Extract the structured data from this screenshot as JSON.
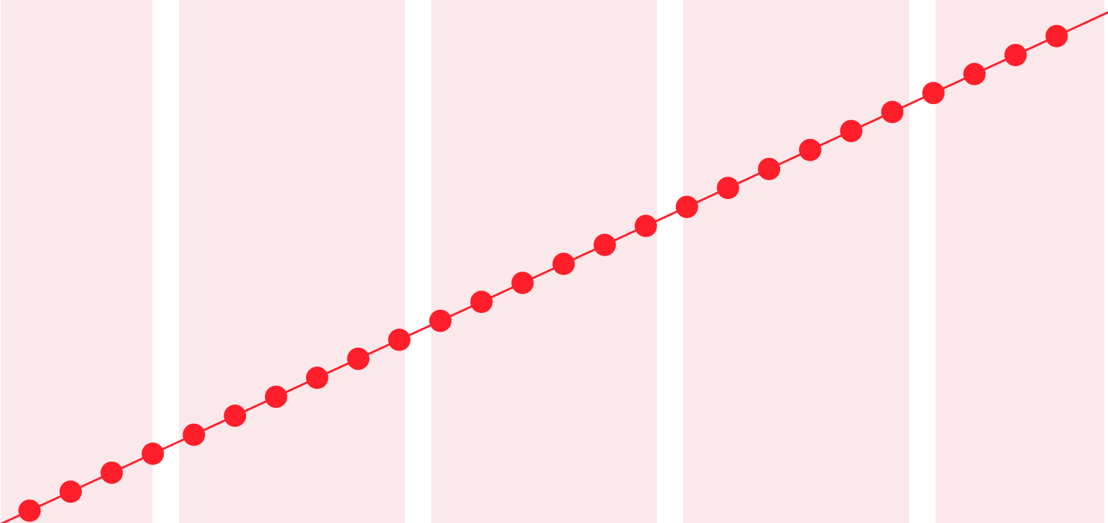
{
  "chart_data": {
    "type": "line",
    "title": "",
    "xlabel": "",
    "ylabel": "",
    "grid": false,
    "legend": "none",
    "x": [
      1,
      2,
      3,
      4,
      5,
      6,
      7,
      8,
      9,
      10,
      11,
      12,
      13,
      14,
      15,
      16,
      17,
      18,
      19,
      20,
      21,
      22,
      23,
      24,
      25,
      26
    ],
    "series": [
      {
        "name": "",
        "values": [
          1,
          2,
          3,
          4,
          5,
          6,
          7,
          8,
          9,
          10,
          11,
          12,
          13,
          14,
          15,
          16,
          17,
          18,
          19,
          20,
          21,
          22,
          23,
          24,
          25,
          26
        ],
        "color": "#ff1f2b"
      }
    ],
    "xlim": [
      0.28,
      27.25
    ],
    "ylim": [
      0.35,
      27.9
    ],
    "bands": [
      {
        "from": 0.3,
        "to": 3.99
      },
      {
        "from": 4.64,
        "to": 10.13
      },
      {
        "from": 10.78,
        "to": 16.27
      },
      {
        "from": 16.91,
        "to": 22.41
      },
      {
        "from": 23.05,
        "to": 27.16
      }
    ],
    "band_color": "#fbe8ea",
    "line_color": "#ff1f2b",
    "marker_color": "#ff1f2b"
  }
}
